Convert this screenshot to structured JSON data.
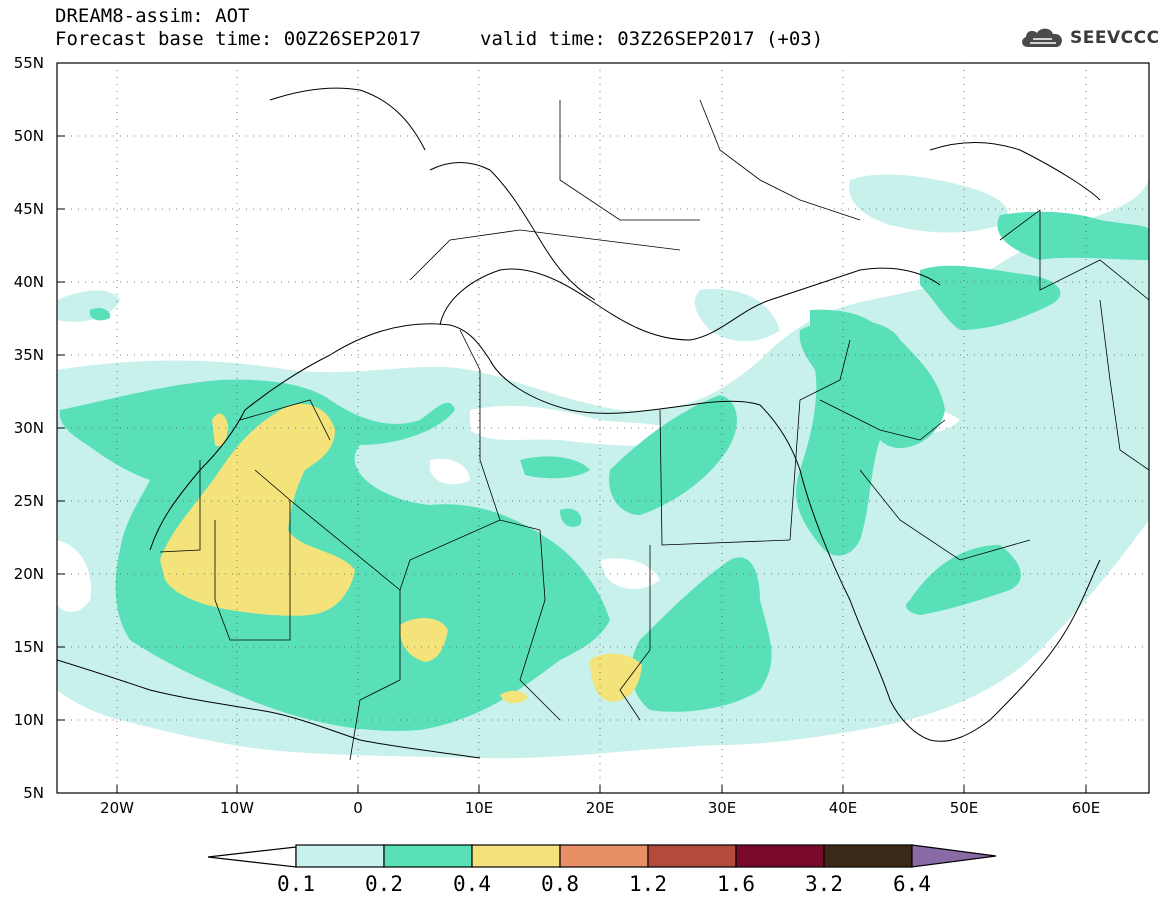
{
  "title_line1": "DREAM8-assim: AOT",
  "title_line2": "Forecast base time: 00Z26SEP2017",
  "valid_time": "valid time: 03Z26SEP2017 (+03)",
  "logo_text": "SEEVCCC",
  "latitude_labels": [
    "55N",
    "50N",
    "45N",
    "40N",
    "35N",
    "30N",
    "25N",
    "20N",
    "15N",
    "10N",
    "5N"
  ],
  "longitude_labels": [
    "20W",
    "10W",
    "0",
    "10E",
    "20E",
    "30E",
    "40E",
    "50E",
    "60E"
  ],
  "colorbar": {
    "labels": [
      "0.1",
      "0.2",
      "0.4",
      "0.8",
      "1.2",
      "1.6",
      "3.2",
      "6.4"
    ],
    "colors": [
      "#ffffff",
      "#c8f1ec",
      "#59e0b8",
      "#f3e37a",
      "#e98f66",
      "#b34a3b",
      "#7a0a2a",
      "#3b2a18",
      "#8a6aa6"
    ]
  },
  "field_colors": {
    "aot_0_1_0_2": "#c8f1ec",
    "aot_0_2_0_4": "#59e0b8",
    "aot_0_4_0_8": "#f3e37a"
  }
}
